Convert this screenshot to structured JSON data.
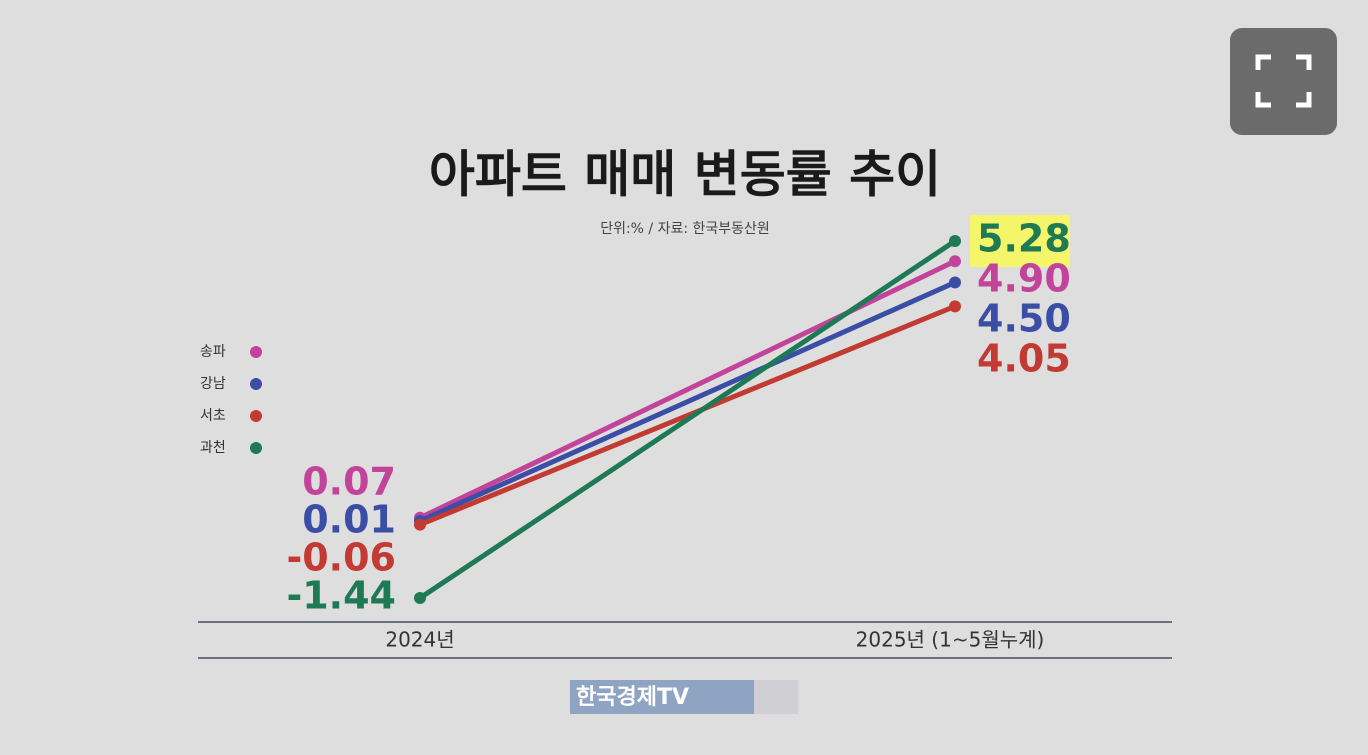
{
  "chart_data": {
    "type": "line",
    "title": "아파트 매매 변동률 추이",
    "subtitle": "단위:% / 자료: 한국부동산원",
    "watermark": "한국경제TV",
    "categories": [
      "2024년",
      "2025년 (1~5월누계)"
    ],
    "series": [
      {
        "name": "송파",
        "color": "#c2449a",
        "values": [
          0.07,
          4.9
        ],
        "value_labels": [
          "0.07",
          "4.90"
        ]
      },
      {
        "name": "강남",
        "color": "#3b4ea6",
        "values": [
          0.01,
          4.5
        ],
        "value_labels": [
          "0.01",
          "4.50"
        ]
      },
      {
        "name": "서초",
        "color": "#c23a32",
        "values": [
          -0.06,
          4.05
        ],
        "value_labels": [
          "-0.06",
          "4.05"
        ]
      },
      {
        "name": "과천",
        "color": "#1d7a55",
        "values": [
          -1.44,
          5.28
        ],
        "value_labels": [
          "-1.44",
          "5.28"
        ],
        "highlight": "#f5f56a"
      }
    ],
    "legend": "left"
  }
}
